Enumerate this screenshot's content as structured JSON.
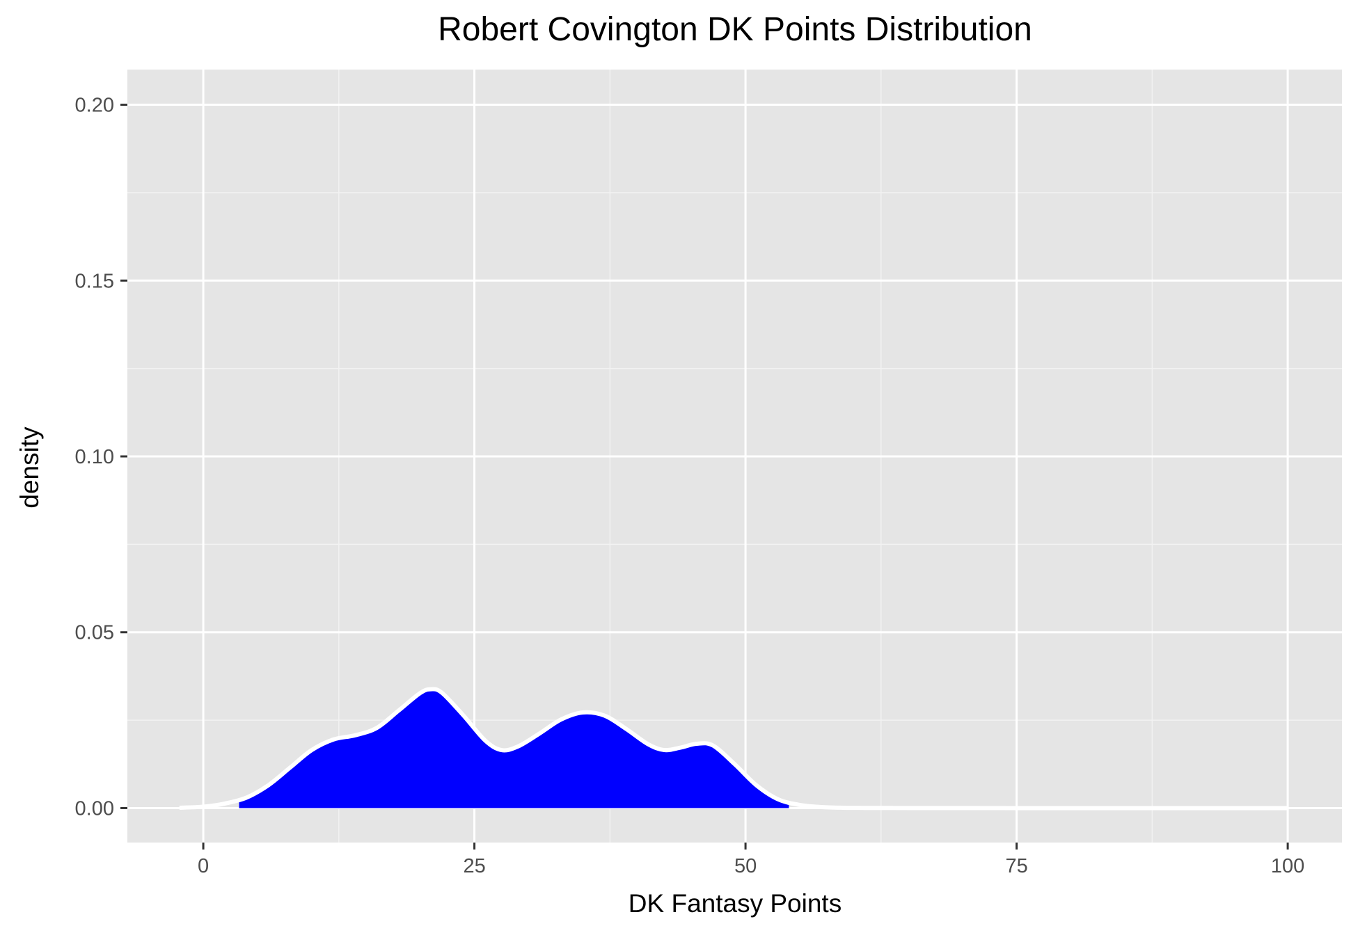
{
  "chart_data": {
    "type": "area",
    "title": "Robert Covington DK Points Distribution",
    "xlabel": "DK Fantasy Points",
    "ylabel": "density",
    "xlim": [
      -7,
      105
    ],
    "ylim": [
      -0.0098,
      0.21
    ],
    "x_ticks": [
      {
        "value": 0,
        "label": "0"
      },
      {
        "value": 25,
        "label": "25"
      },
      {
        "value": 50,
        "label": "50"
      },
      {
        "value": 75,
        "label": "75"
      },
      {
        "value": 100,
        "label": "100"
      }
    ],
    "y_ticks": [
      {
        "value": 0,
        "label": "0.00"
      },
      {
        "value": 0.05,
        "label": "0.05"
      },
      {
        "value": 0.1,
        "label": "0.10"
      },
      {
        "value": 0.15,
        "label": "0.15"
      },
      {
        "value": 0.2,
        "label": "0.20"
      }
    ],
    "x_minor": [
      12.5,
      37.5,
      62.5,
      87.5
    ],
    "y_minor": [
      0.025,
      0.075,
      0.125,
      0.175
    ],
    "grid": true,
    "legend": "none",
    "series": [
      {
        "fill_range": [
          3.3,
          54
        ],
        "x": [
          -2.2,
          0,
          2,
          4,
          6,
          8,
          10,
          12,
          14,
          16,
          18,
          20,
          21,
          22,
          24,
          26,
          27.5,
          29,
          31,
          33,
          35,
          37,
          39,
          41,
          42.5,
          44,
          45.5,
          47,
          49,
          51,
          53,
          55,
          57,
          59,
          61,
          65,
          70,
          80,
          90,
          100
        ],
        "y": [
          0.0001,
          0.0004,
          0.0013,
          0.003,
          0.0065,
          0.0115,
          0.0165,
          0.0195,
          0.0207,
          0.0228,
          0.0277,
          0.0327,
          0.0338,
          0.0328,
          0.0263,
          0.0192,
          0.0165,
          0.0175,
          0.0212,
          0.0252,
          0.0272,
          0.0263,
          0.0225,
          0.0182,
          0.0165,
          0.0172,
          0.0183,
          0.0178,
          0.0125,
          0.0065,
          0.0025,
          0.0009,
          0.0003,
          0.0001,
          5e-05,
          2e-05,
          1e-05,
          0,
          0,
          0
        ]
      }
    ],
    "colors": {
      "panel_background": "#e5e5e5",
      "grid_major": "#ffffff",
      "grid_minor": "#f2f2f2",
      "fill": "#0000ff",
      "outline": "#ffffff",
      "tick_text": "#4d4d4d",
      "tick_mark": "#333333"
    }
  }
}
